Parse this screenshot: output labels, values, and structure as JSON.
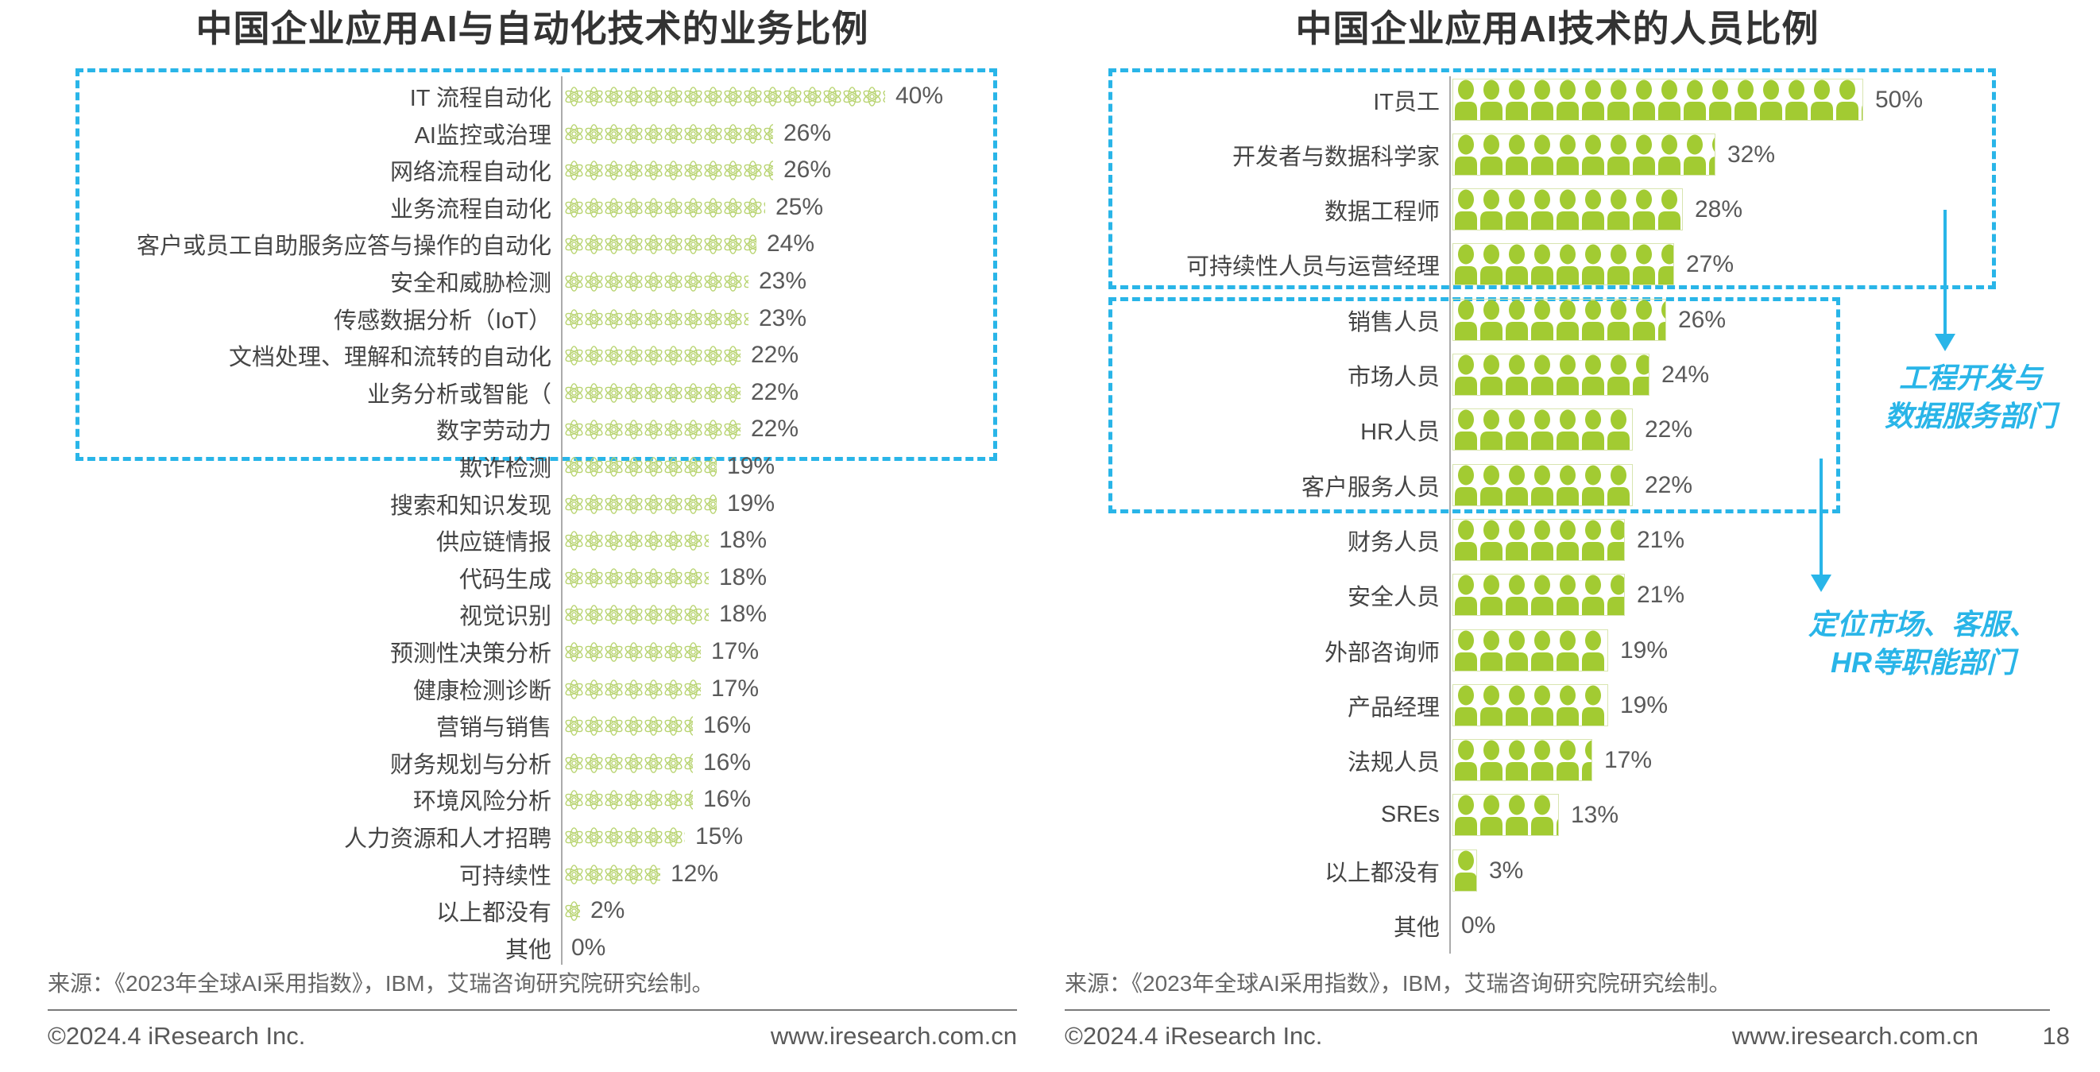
{
  "colors": {
    "accent_cyan": "#29b5e8",
    "atom_green": "#b9d472",
    "person_green": "#a2cb32",
    "bar_frame": "#d8e5b0"
  },
  "chart_data": [
    {
      "type": "bar",
      "orientation": "horizontal",
      "pictogram": "atom",
      "title": "中国企业应用AI与自动化技术的业务比例",
      "value_suffix": "%",
      "xlim": [
        0,
        45
      ],
      "grid": false,
      "categories": [
        "IT 流程自动化",
        "AI监控或治理",
        "网络流程自动化",
        "业务流程自动化",
        "客户或员工自助服务应答与操作的自动化",
        "安全和威胁检测",
        "传感数据分析（IoT）",
        "文档处理、理解和流转的自动化",
        "业务分析或智能（",
        "数字劳动力",
        "欺诈检测",
        "搜索和知识发现",
        "供应链情报",
        "代码生成",
        "视觉识别",
        "预测性决策分析",
        "健康检测诊断",
        "营销与销售",
        "财务规划与分析",
        "环境风险分析",
        "人力资源和人才招聘",
        "可持续性",
        "以上都没有",
        "其他"
      ],
      "values": [
        40,
        26,
        26,
        25,
        24,
        23,
        23,
        22,
        22,
        22,
        19,
        19,
        18,
        18,
        18,
        17,
        17,
        16,
        16,
        16,
        15,
        12,
        2,
        0
      ],
      "highlight_box_rows": [
        0,
        9
      ],
      "source": "来源：《2023年全球AI采用指数》，IBM，艾瑞咨询研究院研究绘制。"
    },
    {
      "type": "bar",
      "orientation": "horizontal",
      "pictogram": "person",
      "title": "中国企业应用AI技术的人员比例",
      "value_suffix": "%",
      "xlim": [
        0,
        55
      ],
      "grid": false,
      "categories": [
        "IT员工",
        "开发者与数据科学家",
        "数据工程师",
        "可持续性人员与运营经理",
        "销售人员",
        "市场人员",
        "HR人员",
        "客户服务人员",
        "财务人员",
        "安全人员",
        "外部咨询师",
        "产品经理",
        "法规人员",
        "SREs",
        "以上都没有",
        "其他"
      ],
      "values": [
        50,
        32,
        28,
        27,
        26,
        24,
        22,
        22,
        21,
        21,
        19,
        19,
        17,
        13,
        3,
        0
      ],
      "highlight_boxes": [
        {
          "rows": [
            0,
            3
          ]
        },
        {
          "rows": [
            4,
            7
          ]
        }
      ],
      "annotations": [
        {
          "lines": [
            "工程开发与",
            "数据服务部门"
          ]
        },
        {
          "lines": [
            "定位市场、客服、",
            "HR等职能部门"
          ]
        }
      ],
      "source": "来源：《2023年全球AI采用指数》，IBM，艾瑞咨询研究院研究绘制。"
    }
  ],
  "footer": {
    "left": {
      "copyright": "©2024.4 iResearch Inc.",
      "website": "www.iresearch.com.cn"
    },
    "right": {
      "copyright": "©2024.4 iResearch Inc.",
      "website": "www.iresearch.com.cn",
      "page_number": "18"
    }
  }
}
